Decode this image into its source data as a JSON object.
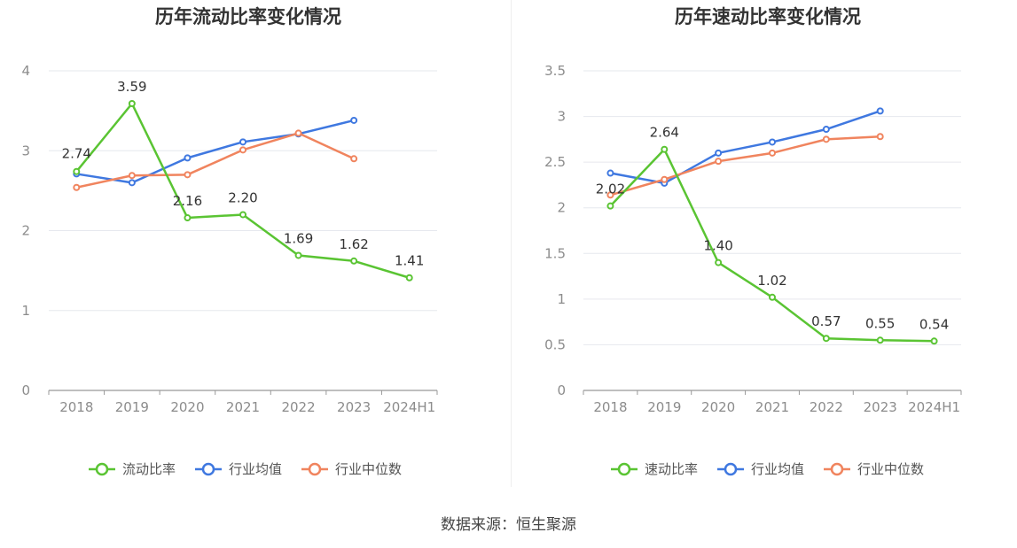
{
  "charts": [
    {
      "id": "current",
      "chart_data": {
        "type": "line",
        "title": "历年流动比率变化情况",
        "categories": [
          "2018",
          "2019",
          "2020",
          "2021",
          "2022",
          "2023",
          "2024H1"
        ],
        "ylim": [
          0,
          4
        ],
        "yticks": [
          0,
          1,
          2,
          3,
          4
        ],
        "ytick_labels": [
          "0",
          "1",
          "2",
          "3",
          "4"
        ],
        "grid": true,
        "legend_position": "bottom",
        "series": [
          {
            "name": "流动比率",
            "color": "#5ac433",
            "values": [
              2.74,
              3.59,
              2.16,
              2.2,
              1.69,
              1.62,
              1.41
            ],
            "labels": [
              "2.74",
              "3.59",
              "2.16",
              "2.20",
              "1.69",
              "1.62",
              "1.41"
            ]
          },
          {
            "name": "行业均值",
            "color": "#3f78e0",
            "values": [
              2.71,
              2.6,
              2.91,
              3.11,
              3.21,
              3.38,
              null
            ]
          },
          {
            "name": "行业中位数",
            "color": "#f0845e",
            "values": [
              2.54,
              2.69,
              2.7,
              3.01,
              3.22,
              2.9,
              null
            ]
          }
        ]
      }
    },
    {
      "id": "quick",
      "chart_data": {
        "type": "line",
        "title": "历年速动比率变化情况",
        "categories": [
          "2018",
          "2019",
          "2020",
          "2021",
          "2022",
          "2023",
          "2024H1"
        ],
        "ylim": [
          0,
          3.5
        ],
        "yticks": [
          0,
          0.5,
          1,
          1.5,
          2,
          2.5,
          3,
          3.5
        ],
        "ytick_labels": [
          "0",
          "0.5",
          "1",
          "1.5",
          "2",
          "2.5",
          "3",
          "3.5"
        ],
        "grid": true,
        "legend_position": "bottom",
        "series": [
          {
            "name": "速动比率",
            "color": "#5ac433",
            "values": [
              2.02,
              2.64,
              1.4,
              1.02,
              0.57,
              0.55,
              0.54
            ],
            "labels": [
              "2.02",
              "2.64",
              "1.40",
              "1.02",
              "0.57",
              "0.55",
              "0.54"
            ]
          },
          {
            "name": "行业均值",
            "color": "#3f78e0",
            "values": [
              2.38,
              2.27,
              2.6,
              2.72,
              2.86,
              3.06,
              null
            ]
          },
          {
            "name": "行业中位数",
            "color": "#f0845e",
            "values": [
              2.14,
              2.31,
              2.51,
              2.6,
              2.75,
              2.78,
              null
            ]
          }
        ]
      }
    }
  ],
  "footer": {
    "source": "数据来源：恒生聚源"
  }
}
